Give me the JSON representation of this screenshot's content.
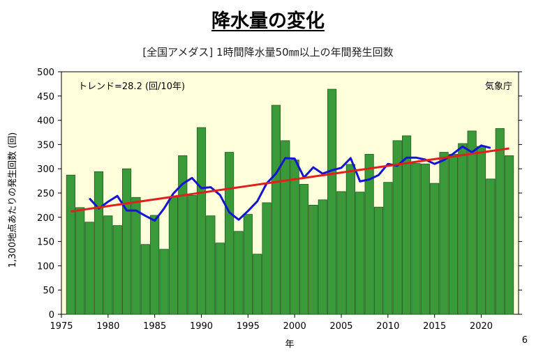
{
  "slide": {
    "title": "降水量の変化",
    "page_number": "6"
  },
  "chart_data": {
    "type": "bar",
    "title": "[全国アメダス] 1時間降水量50㎜以上の年間発生回数",
    "xlabel": "年",
    "ylabel": "1,300地点あたりの発生回数 (回)",
    "trend_label": "トレンド=28.2 (回/10年)",
    "source_label": "気象庁",
    "xlim": [
      1975,
      2024
    ],
    "ylim": [
      0,
      500
    ],
    "x_ticks": [
      1975,
      1980,
      1985,
      1990,
      1995,
      2000,
      2005,
      2010,
      2015,
      2020
    ],
    "y_ticks": [
      0,
      50,
      100,
      150,
      200,
      250,
      300,
      350,
      400,
      450,
      500
    ],
    "grid": false,
    "colors": {
      "bar_fill": "#3a9a3a",
      "bar_stroke": "#1d5c1d",
      "moving_average": "#1414d2",
      "trend": "#e0201c",
      "plot_background": "#ffffdc"
    },
    "years": [
      1976,
      1977,
      1978,
      1979,
      1980,
      1981,
      1982,
      1983,
      1984,
      1985,
      1986,
      1987,
      1988,
      1989,
      1990,
      1991,
      1992,
      1993,
      1994,
      1995,
      1996,
      1997,
      1998,
      1999,
      2000,
      2001,
      2002,
      2003,
      2004,
      2005,
      2006,
      2007,
      2008,
      2009,
      2010,
      2011,
      2012,
      2013,
      2014,
      2015,
      2016,
      2017,
      2018,
      2019,
      2020,
      2021,
      2022,
      2023
    ],
    "values": [
      287,
      220,
      190,
      294,
      203,
      183,
      300,
      241,
      144,
      204,
      134,
      242,
      327,
      245,
      385,
      203,
      147,
      334,
      171,
      206,
      124,
      230,
      431,
      358,
      318,
      268,
      225,
      236,
      464,
      253,
      309,
      252,
      330,
      221,
      272,
      358,
      368,
      311,
      310,
      270,
      334,
      330,
      352,
      378,
      346,
      279,
      383,
      327
    ],
    "moving_average": {
      "years": [
        1978,
        1979,
        1980,
        1981,
        1982,
        1983,
        1984,
        1985,
        1986,
        1987,
        1988,
        1989,
        1990,
        1991,
        1992,
        1993,
        1994,
        1995,
        1996,
        1997,
        1998,
        1999,
        2000,
        2001,
        2002,
        2003,
        2004,
        2005,
        2006,
        2007,
        2008,
        2009,
        2010,
        2011,
        2012,
        2013,
        2014,
        2015,
        2016,
        2017,
        2018,
        2019,
        2020,
        2021
      ],
      "values": [
        239,
        218,
        232,
        244,
        214,
        214,
        203,
        193,
        218,
        249,
        269,
        281,
        260,
        262,
        246,
        210,
        195,
        213,
        233,
        270,
        290,
        322,
        321,
        282,
        303,
        290,
        297,
        302,
        322,
        274,
        278,
        287,
        310,
        306,
        323,
        323,
        319,
        310,
        318,
        331,
        346,
        334,
        348,
        343
      ]
    },
    "trend_line": {
      "x": [
        1976,
        2023
      ],
      "y": [
        212,
        342
      ]
    }
  }
}
